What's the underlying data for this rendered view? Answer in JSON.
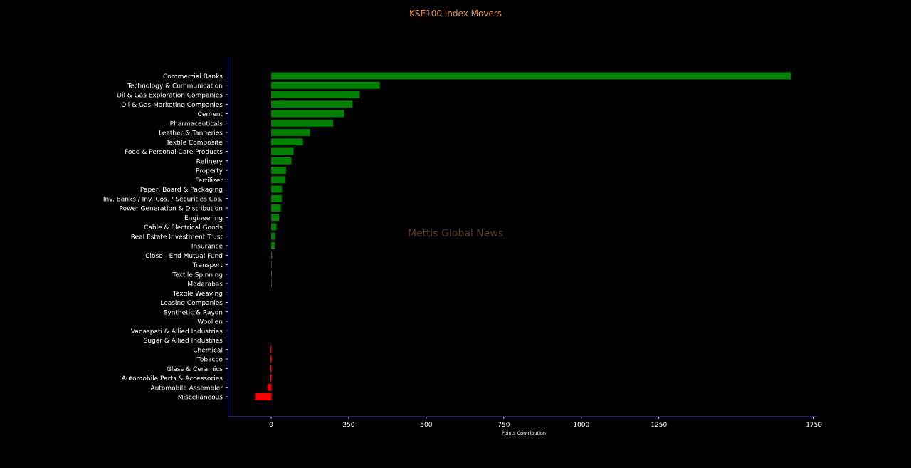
{
  "chart_data": {
    "type": "bar",
    "orientation": "horizontal",
    "title": "KSE100 Index Movers",
    "xlabel": "Points Contribution",
    "ylabel": "",
    "xlim": [
      -140,
      1760
    ],
    "xticks": [
      0,
      250,
      500,
      750,
      1000,
      1250,
      1750
    ],
    "watermark": "Mettis Global News",
    "colors": {
      "positive": "#008000",
      "negative": "#ff0000",
      "title": "#e8915a",
      "axis": "#1c1c8c",
      "text": "#ffffff",
      "watermark": "#5a3a2a"
    },
    "categories": [
      "Commercial Banks",
      "Technology & Communication",
      "Oil & Gas Exploration Companies",
      "Oil & Gas Marketing Companies",
      "Cement",
      "Pharmaceuticals",
      "Leather & Tanneries",
      "Textile Composite",
      "Food & Personal Care Products",
      "Refinery",
      "Property",
      "Fertilizer",
      "Paper, Board & Packaging",
      "Inv. Banks / Inv. Cos. / Securities Cos.",
      "Power Generation & Distribution",
      "Engineering",
      "Cable & Electrical Goods",
      "Real Estate Investment Trust",
      "Insurance",
      "Close - End Mutual Fund",
      "Transport",
      "Textile Spinning",
      "Modarabas",
      "Textile Weaving",
      "Leasing Companies",
      "Synthetic & Rayon",
      "Woollen",
      "Vanaspati & Allied Industries",
      "Sugar & Allied Industries",
      "Chemical",
      "Tobacco",
      "Glass & Ceramics",
      "Automobile Parts & Accessories",
      "Automobile Assembler",
      "Miscellaneous"
    ],
    "values": [
      1675,
      350,
      285,
      262,
      235,
      200,
      125,
      102,
      72,
      65,
      48,
      45,
      35,
      34,
      31,
      26,
      17,
      13,
      12,
      3,
      2,
      2,
      1.5,
      0,
      0,
      0,
      0,
      0,
      0,
      -2,
      -2.5,
      -3,
      -4,
      -11,
      -52
    ]
  }
}
